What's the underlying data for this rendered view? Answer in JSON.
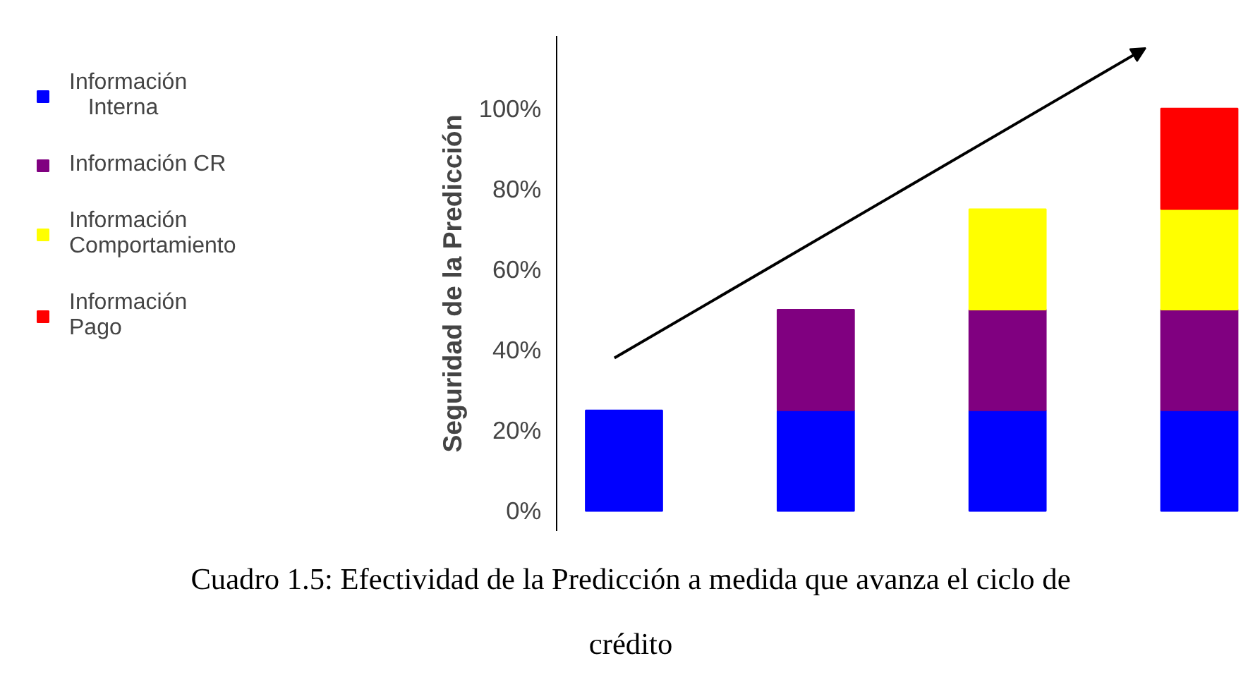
{
  "chart_data": {
    "type": "bar",
    "stacked": true,
    "ylabel": "Seguridad de la Predicción",
    "categories": [
      null,
      null,
      null,
      null
    ],
    "series": [
      {
        "name": "Información\n   Interna",
        "color": "#0000ff",
        "values": [
          25,
          25,
          25,
          25
        ]
      },
      {
        "name": "Información CR",
        "color": "#800080",
        "values": [
          null,
          25,
          25,
          25
        ]
      },
      {
        "name": "Información\nComportamiento",
        "color": "#ffff00",
        "values": [
          null,
          null,
          25,
          25
        ]
      },
      {
        "name": "Información\nPago",
        "color": "#ff0000",
        "values": [
          null,
          null,
          null,
          25
        ]
      }
    ],
    "ylim": [
      -5,
      118
    ],
    "yticks": [
      {
        "value": 0,
        "label": "0%"
      },
      {
        "value": 20,
        "label": "20%"
      },
      {
        "value": 40,
        "label": "40%"
      },
      {
        "value": 60,
        "label": "60%"
      },
      {
        "value": 80,
        "label": "80%"
      },
      {
        "value": 100,
        "label": "100%"
      }
    ],
    "grid": false,
    "legend": "left",
    "annotations": [
      "Cuadro 1.5: Efectividad de la Predicción a medida que avanza el ciclo de crédito"
    ]
  }
}
